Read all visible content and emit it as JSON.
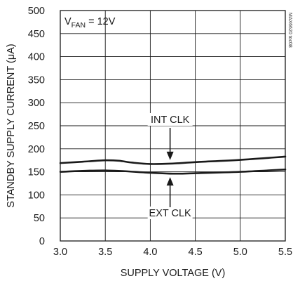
{
  "chart_data": {
    "type": "line",
    "xlabel": "SUPPLY VOLTAGE (V)",
    "ylabel": "STANDBY SUPPLY CURRENT (μA)",
    "xlim": [
      3.0,
      5.5
    ],
    "ylim": [
      0,
      500
    ],
    "x_ticks": [
      "3.0",
      "3.5",
      "4.0",
      "4.5",
      "5.0",
      "5.5"
    ],
    "y_ticks": [
      "0",
      "50",
      "100",
      "150",
      "200",
      "250",
      "300",
      "350",
      "400",
      "450",
      "500"
    ],
    "grid": true,
    "condition": {
      "prefix": "V",
      "subscript": "FAN",
      "suffix": " = 12V"
    },
    "figure_code": "MAX6620 toc08",
    "series": [
      {
        "name": "INT CLK",
        "x": [
          3.0,
          3.25,
          3.5,
          3.65,
          3.8,
          4.0,
          4.25,
          4.5,
          5.0,
          5.5
        ],
        "y": [
          169,
          172,
          175,
          174,
          170,
          167,
          168,
          171,
          176,
          183
        ]
      },
      {
        "name": "EXT CLK",
        "x": [
          3.0,
          3.5,
          4.0,
          4.25,
          4.5,
          5.0,
          5.5
        ],
        "y": [
          150,
          153,
          148,
          146,
          147,
          150,
          155
        ]
      }
    ],
    "annotations": [
      {
        "label": "INT CLK",
        "arrow_x": 4.22,
        "target": "INT CLK"
      },
      {
        "label": "EXT CLK",
        "arrow_x": 4.22,
        "target": "EXT CLK"
      }
    ]
  }
}
